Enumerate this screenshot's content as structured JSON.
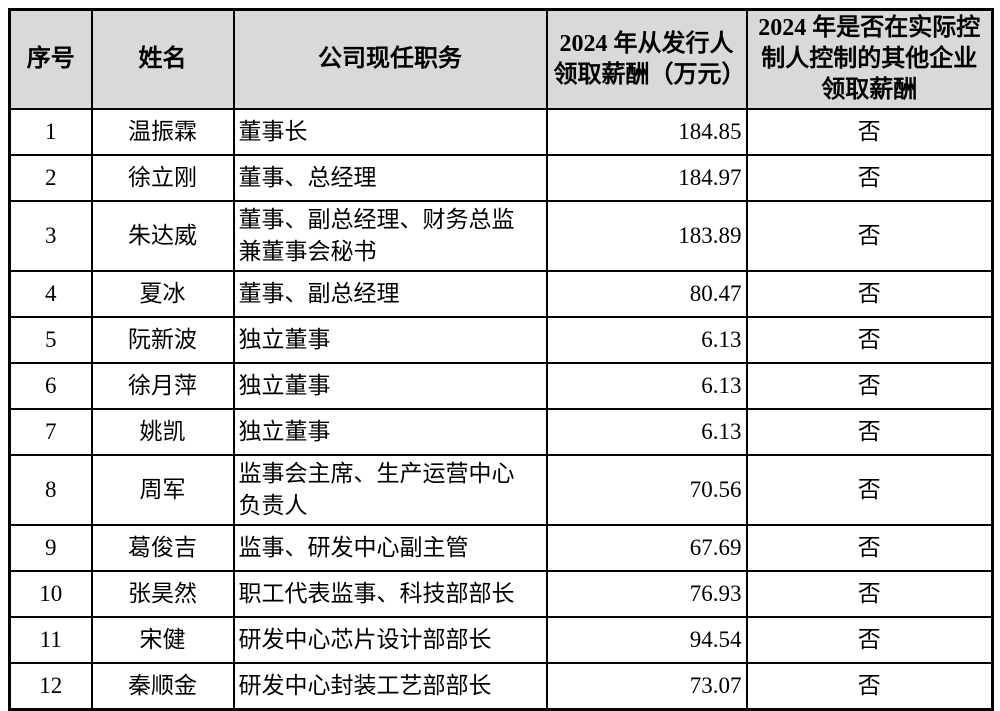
{
  "colors": {
    "header_bg": "#d9d9d9",
    "border": "#000000",
    "page_bg": "#ffffff",
    "text": "#000000"
  },
  "table": {
    "headers": [
      {
        "label": "序号"
      },
      {
        "label": "姓名"
      },
      {
        "label": "公司现任职务"
      },
      {
        "label": "2024 年从发行人\n领取薪酬（万元）"
      },
      {
        "label": "2024 年是否在实际控\n制人控制的其他企业\n领取薪酬"
      }
    ],
    "rows": [
      {
        "no": "1",
        "name": "温振霖",
        "position": "董事长",
        "salary": "184.85",
        "other": "否"
      },
      {
        "no": "2",
        "name": "徐立刚",
        "position": "董事、总经理",
        "salary": "184.97",
        "other": "否"
      },
      {
        "no": "3",
        "name": "朱达威",
        "position": "董事、副总经理、财务总监\n兼董事会秘书",
        "salary": "183.89",
        "other": "否"
      },
      {
        "no": "4",
        "name": "夏冰",
        "position": "董事、副总经理",
        "salary": "80.47",
        "other": "否"
      },
      {
        "no": "5",
        "name": "阮新波",
        "position": "独立董事",
        "salary": "6.13",
        "other": "否"
      },
      {
        "no": "6",
        "name": "徐月萍",
        "position": "独立董事",
        "salary": "6.13",
        "other": "否"
      },
      {
        "no": "7",
        "name": "姚凯",
        "position": "独立董事",
        "salary": "6.13",
        "other": "否"
      },
      {
        "no": "8",
        "name": "周军",
        "position": "监事会主席、生产运营中心\n负责人",
        "salary": "70.56",
        "other": "否"
      },
      {
        "no": "9",
        "name": "葛俊吉",
        "position": "监事、研发中心副主管",
        "salary": "67.69",
        "other": "否"
      },
      {
        "no": "10",
        "name": "张昊然",
        "position": "职工代表监事、科技部部长",
        "salary": "76.93",
        "other": "否"
      },
      {
        "no": "11",
        "name": "宋健",
        "position": "研发中心芯片设计部部长",
        "salary": "94.54",
        "other": "否"
      },
      {
        "no": "12",
        "name": "秦顺金",
        "position": "研发中心封装工艺部部长",
        "salary": "73.07",
        "other": "否"
      }
    ]
  }
}
